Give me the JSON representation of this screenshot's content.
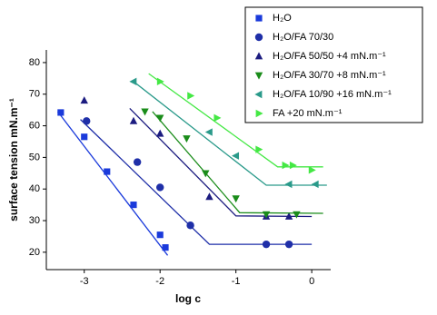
{
  "chart_data": {
    "type": "scatter",
    "x_label": "log c",
    "y_label": "surface tension mN.m⁻¹",
    "xlim": [
      -3.5,
      0.25
    ],
    "ylim": [
      14.5,
      84
    ],
    "xticks": [
      -3,
      -2,
      -1,
      0
    ],
    "yticks": [
      20,
      30,
      40,
      50,
      60,
      70,
      80
    ],
    "grid": false,
    "legend": "top-right",
    "series": [
      {
        "name": "H₂O",
        "color": "#1a3adb",
        "marker": "square",
        "x": [
          -3.31,
          -3.0,
          -2.7,
          -2.35,
          -2.0,
          -1.93
        ],
        "values": [
          64.2,
          56.5,
          45.5,
          35,
          25.5,
          21.5
        ],
        "fit": {
          "x": [
            -3.35,
            -1.9
          ],
          "y": [
            64.5,
            19
          ]
        }
      },
      {
        "name": "H₂O/FA 70/30",
        "color": "#1f2fa8",
        "marker": "circle",
        "x": [
          -2.97,
          -2.3,
          -2.0,
          -1.6,
          -0.6,
          -0.3
        ],
        "values": [
          61.5,
          48.5,
          40.5,
          28.5,
          22.5,
          22.5
        ],
        "fit": {
          "x": [
            -3.05,
            -1.35,
            0
          ],
          "y": [
            62,
            22.5,
            22.5
          ]
        }
      },
      {
        "name": "H₂O/FA 50/50 +4 mN.m⁻¹",
        "color": "#1c1c80",
        "marker": "tri-up",
        "x": [
          -3.0,
          -2.35,
          -2.0,
          -1.35,
          -0.6,
          -0.3
        ],
        "values": [
          68,
          61.5,
          57.5,
          37.5,
          31.3,
          31.3
        ],
        "fit": {
          "x": [
            -2.4,
            -1.0,
            0
          ],
          "y": [
            65.5,
            31.5,
            31.3
          ]
        }
      },
      {
        "name": "H₂O/FA 30/70 +8 mN.m⁻¹",
        "color": "#1a8c1a",
        "marker": "tri-down",
        "x": [
          -2.2,
          -2.0,
          -1.65,
          -1.4,
          -1.0,
          -0.6,
          -0.2
        ],
        "values": [
          64.5,
          62.5,
          56,
          45,
          37,
          32,
          32
        ],
        "fit": {
          "x": [
            -2.1,
            -0.95,
            0.15
          ],
          "y": [
            64.5,
            32.5,
            32.3
          ]
        }
      },
      {
        "name": "H₂O/FA 10/90 +16 mN.m⁻¹",
        "color": "#2a9a8a",
        "marker": "tri-left",
        "x": [
          -2.35,
          -1.35,
          -1.0,
          -0.3,
          0.05
        ],
        "values": [
          74,
          58,
          50.5,
          41.5,
          41.5
        ],
        "fit": {
          "x": [
            -2.35,
            -0.6,
            0.2
          ],
          "y": [
            74,
            41.2,
            41.2
          ]
        }
      },
      {
        "name": "FA +20 mN.m⁻¹",
        "color": "#44e844",
        "marker": "tri-right",
        "x": [
          -2.0,
          -1.6,
          -1.25,
          -0.7,
          -0.35,
          -0.25,
          0.0
        ],
        "values": [
          74,
          69.5,
          62.5,
          52.5,
          47.5,
          47.5,
          46
        ],
        "fit": {
          "x": [
            -2.15,
            -0.45,
            0.15
          ],
          "y": [
            76.5,
            47,
            47
          ]
        }
      }
    ]
  }
}
